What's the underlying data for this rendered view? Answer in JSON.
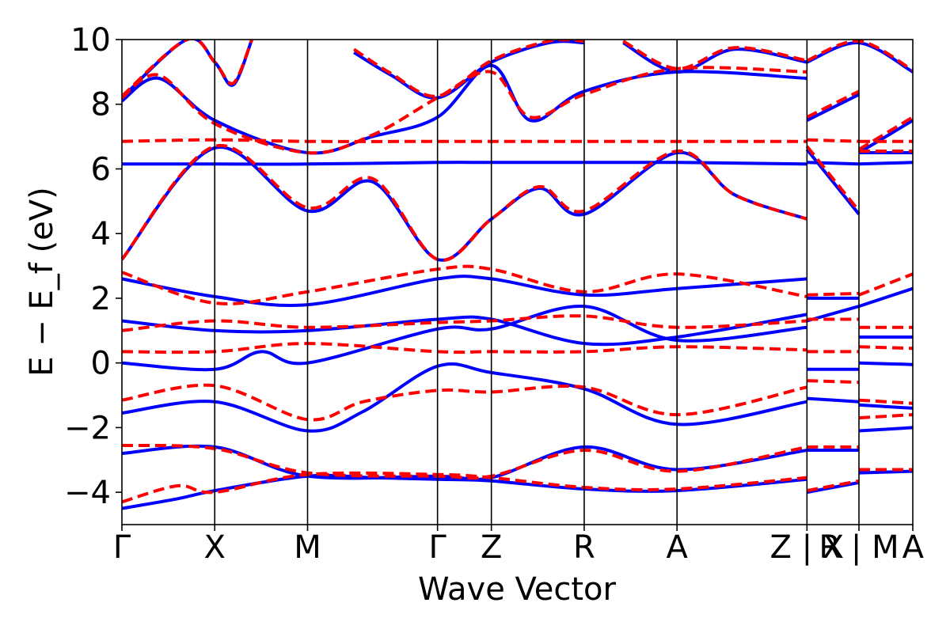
{
  "chart_data": {
    "type": "line",
    "title": "",
    "xlabel": "Wave Vector",
    "ylabel": "E − E_f (eV)",
    "ylim": [
      -5,
      10
    ],
    "grid": false,
    "legend": "none",
    "y_ticks": [
      -4,
      -2,
      0,
      2,
      4,
      6,
      8,
      10
    ],
    "y_tick_labels": [
      "−4",
      "−2",
      "0",
      "2",
      "4",
      "6",
      "8",
      "10"
    ],
    "k_points": [
      {
        "label": "Γ",
        "x": 0.0
      },
      {
        "label": "X",
        "x": 0.5
      },
      {
        "label": "M",
        "x": 1.0
      },
      {
        "label": "Γ",
        "x": 1.7
      },
      {
        "label": "Z",
        "x": 1.99
      },
      {
        "label": "R",
        "x": 2.49
      },
      {
        "label": "A",
        "x": 2.99
      },
      {
        "label": "Z | X",
        "x": 3.69
      },
      {
        "label": "R | M",
        "x": 3.97
      },
      {
        "label": "A",
        "x": 4.26
      }
    ],
    "segment_breaks": [
      3.69,
      3.97
    ],
    "series": [
      {
        "style": "solid",
        "color": "#0000ff",
        "bands": [
          [
            [
              0,
              -4.5
            ],
            [
              0.3,
              -4.2
            ],
            [
              0.5,
              -3.95
            ],
            [
              1.0,
              -3.5
            ],
            [
              1.35,
              -3.55
            ],
            [
              1.7,
              -3.6
            ],
            [
              1.99,
              -3.65
            ],
            [
              2.49,
              -3.9
            ],
            [
              2.99,
              -3.95
            ],
            [
              3.69,
              -3.6
            ],
            [
              3.69,
              -4.0
            ],
            [
              3.97,
              -3.7
            ],
            [
              3.97,
              -3.4
            ],
            [
              4.26,
              -3.35
            ]
          ],
          [
            [
              0,
              -2.8
            ],
            [
              0.5,
              -2.6
            ],
            [
              1.0,
              -3.5
            ],
            [
              1.7,
              -3.5
            ],
            [
              1.99,
              -3.55
            ],
            [
              2.49,
              -2.6
            ],
            [
              2.99,
              -3.3
            ],
            [
              3.69,
              -2.7
            ],
            [
              3.69,
              -2.7
            ],
            [
              3.97,
              -2.7
            ],
            [
              3.97,
              -2.1
            ],
            [
              4.26,
              -2.0
            ]
          ],
          [
            [
              0,
              -1.55
            ],
            [
              0.5,
              -1.2
            ],
            [
              1.0,
              -2.1
            ],
            [
              1.3,
              -1.5
            ],
            [
              1.7,
              -0.1
            ],
            [
              1.99,
              -0.3
            ],
            [
              2.49,
              -0.8
            ],
            [
              2.99,
              -1.9
            ],
            [
              3.69,
              -1.2
            ],
            [
              3.69,
              -1.1
            ],
            [
              3.97,
              -1.2
            ],
            [
              3.97,
              -1.3
            ],
            [
              4.26,
              -1.4
            ]
          ],
          [
            [
              0,
              0.0
            ],
            [
              0.5,
              -0.2
            ],
            [
              0.75,
              0.35
            ],
            [
              1.0,
              0.0
            ],
            [
              1.7,
              1.05
            ],
            [
              1.99,
              1.05
            ],
            [
              2.49,
              1.75
            ],
            [
              2.99,
              0.7
            ],
            [
              3.69,
              1.1
            ],
            [
              3.69,
              -0.2
            ],
            [
              3.97,
              -0.2
            ],
            [
              3.97,
              0.0
            ],
            [
              4.26,
              -0.05
            ]
          ],
          [
            [
              0,
              1.3
            ],
            [
              0.5,
              1.0
            ],
            [
              1.0,
              1.0
            ],
            [
              1.7,
              1.35
            ],
            [
              1.99,
              1.35
            ],
            [
              2.49,
              0.6
            ],
            [
              2.99,
              0.8
            ],
            [
              3.69,
              1.5
            ],
            [
              3.69,
              1.3
            ],
            [
              3.97,
              1.75
            ],
            [
              3.97,
              0.8
            ],
            [
              4.26,
              0.8
            ]
          ],
          [
            [
              0,
              2.6
            ],
            [
              0.5,
              2.05
            ],
            [
              1.0,
              1.8
            ],
            [
              1.7,
              2.6
            ],
            [
              1.99,
              2.6
            ],
            [
              2.49,
              2.1
            ],
            [
              2.99,
              2.3
            ],
            [
              3.69,
              2.6
            ],
            [
              3.69,
              2.0
            ],
            [
              3.97,
              2.0
            ],
            [
              3.97,
              1.75
            ],
            [
              4.26,
              2.3
            ]
          ],
          [
            [
              0,
              3.2
            ],
            [
              0.5,
              6.65
            ],
            [
              1.0,
              4.7
            ],
            [
              1.35,
              5.6
            ],
            [
              1.7,
              3.2
            ],
            [
              1.99,
              4.45
            ],
            [
              2.25,
              5.4
            ],
            [
              2.49,
              4.6
            ],
            [
              2.99,
              6.5
            ],
            [
              3.3,
              5.2
            ],
            [
              3.69,
              4.45
            ],
            [
              3.69,
              6.6
            ],
            [
              3.97,
              4.6
            ],
            [
              3.97,
              6.5
            ],
            [
              4.26,
              6.5
            ]
          ],
          [
            [
              0,
              6.15
            ],
            [
              0.5,
              6.15
            ],
            [
              1.0,
              6.15
            ],
            [
              1.7,
              6.2
            ],
            [
              1.99,
              6.2
            ],
            [
              2.49,
              6.2
            ],
            [
              2.99,
              6.2
            ],
            [
              3.69,
              6.15
            ],
            [
              3.69,
              6.2
            ],
            [
              3.97,
              6.15
            ],
            [
              3.97,
              6.15
            ],
            [
              4.26,
              6.2
            ]
          ],
          [
            [
              0,
              8.1
            ],
            [
              0.2,
              8.8
            ],
            [
              0.5,
              7.5
            ],
            [
              1.0,
              6.5
            ],
            [
              1.35,
              7.0
            ],
            [
              1.7,
              7.6
            ],
            [
              1.99,
              9.2
            ],
            [
              2.2,
              7.5
            ],
            [
              2.49,
              8.4
            ],
            [
              2.99,
              9.0
            ],
            [
              3.69,
              8.8
            ],
            [
              3.69,
              7.5
            ],
            [
              3.97,
              8.3
            ],
            [
              3.97,
              6.5
            ],
            [
              4.26,
              7.5
            ]
          ],
          [
            [
              0,
              8.2
            ],
            [
              0.35,
              10.0
            ],
            [
              0.5,
              9.3
            ],
            [
              0.6,
              8.6
            ],
            [
              0.7,
              10.0
            ]
          ],
          [
            [
              1.25,
              9.6
            ],
            [
              1.45,
              8.9
            ],
            [
              1.7,
              8.2
            ],
            [
              1.99,
              9.3
            ],
            [
              2.3,
              9.9
            ],
            [
              2.49,
              9.9
            ]
          ],
          [
            [
              2.7,
              9.9
            ],
            [
              2.99,
              9.0
            ],
            [
              3.3,
              9.7
            ],
            [
              3.69,
              9.3
            ],
            [
              3.69,
              9.3
            ],
            [
              3.97,
              9.9
            ],
            [
              4.26,
              9.0
            ]
          ]
        ]
      },
      {
        "style": "dashed",
        "color": "#ff0000",
        "bands": [
          [
            [
              0,
              -4.3
            ],
            [
              0.3,
              -3.8
            ],
            [
              0.5,
              -4.0
            ],
            [
              1.0,
              -3.45
            ],
            [
              1.7,
              -3.45
            ],
            [
              1.99,
              -3.55
            ],
            [
              2.49,
              -3.85
            ],
            [
              2.99,
              -3.9
            ],
            [
              3.69,
              -3.55
            ],
            [
              3.69,
              -3.95
            ],
            [
              3.97,
              -3.65
            ],
            [
              3.97,
              -3.3
            ],
            [
              4.26,
              -3.3
            ]
          ],
          [
            [
              0,
              -2.55
            ],
            [
              0.5,
              -2.65
            ],
            [
              1.0,
              -3.4
            ],
            [
              1.7,
              -3.5
            ],
            [
              1.99,
              -3.5
            ],
            [
              2.49,
              -2.7
            ],
            [
              2.99,
              -3.35
            ],
            [
              3.69,
              -2.6
            ],
            [
              3.69,
              -2.6
            ],
            [
              3.97,
              -2.6
            ],
            [
              3.97,
              -1.7
            ],
            [
              4.26,
              -1.6
            ]
          ],
          [
            [
              0,
              -1.15
            ],
            [
              0.5,
              -0.7
            ],
            [
              1.0,
              -1.75
            ],
            [
              1.3,
              -1.2
            ],
            [
              1.7,
              -0.85
            ],
            [
              1.99,
              -0.9
            ],
            [
              2.49,
              -0.75
            ],
            [
              2.99,
              -1.6
            ],
            [
              3.69,
              -0.75
            ],
            [
              3.69,
              -0.55
            ],
            [
              3.97,
              -0.6
            ],
            [
              3.97,
              -1.15
            ],
            [
              4.26,
              -1.25
            ]
          ],
          [
            [
              0,
              0.35
            ],
            [
              0.5,
              0.35
            ],
            [
              1.0,
              0.6
            ],
            [
              1.7,
              0.35
            ],
            [
              1.99,
              0.35
            ],
            [
              2.49,
              0.35
            ],
            [
              2.99,
              0.5
            ],
            [
              3.69,
              0.4
            ],
            [
              3.69,
              0.35
            ],
            [
              3.97,
              0.35
            ],
            [
              3.97,
              0.5
            ],
            [
              4.26,
              0.45
            ]
          ],
          [
            [
              0,
              1.0
            ],
            [
              0.5,
              1.3
            ],
            [
              1.0,
              1.1
            ],
            [
              1.7,
              1.25
            ],
            [
              1.99,
              1.3
            ],
            [
              2.49,
              1.45
            ],
            [
              2.99,
              1.1
            ],
            [
              3.69,
              1.3
            ],
            [
              3.69,
              1.35
            ],
            [
              3.97,
              1.35
            ],
            [
              3.97,
              1.1
            ],
            [
              4.26,
              1.1
            ]
          ],
          [
            [
              0,
              2.8
            ],
            [
              0.5,
              1.85
            ],
            [
              1.0,
              2.2
            ],
            [
              1.7,
              2.9
            ],
            [
              1.99,
              2.9
            ],
            [
              2.49,
              2.2
            ],
            [
              2.99,
              2.75
            ],
            [
              3.69,
              2.05
            ],
            [
              3.69,
              2.1
            ],
            [
              3.97,
              2.15
            ],
            [
              3.97,
              2.1
            ],
            [
              4.26,
              2.75
            ]
          ],
          [
            [
              0,
              3.2
            ],
            [
              0.5,
              6.7
            ],
            [
              1.0,
              4.8
            ],
            [
              1.35,
              5.7
            ],
            [
              1.7,
              3.2
            ],
            [
              1.99,
              4.45
            ],
            [
              2.25,
              5.45
            ],
            [
              2.49,
              4.7
            ],
            [
              2.99,
              6.55
            ],
            [
              3.3,
              5.2
            ],
            [
              3.69,
              4.45
            ],
            [
              3.69,
              6.7
            ],
            [
              3.97,
              4.7
            ],
            [
              3.97,
              6.55
            ],
            [
              4.26,
              6.55
            ]
          ],
          [
            [
              0,
              6.85
            ],
            [
              0.5,
              6.9
            ],
            [
              1.0,
              6.85
            ],
            [
              1.7,
              6.85
            ],
            [
              1.99,
              6.85
            ],
            [
              2.49,
              6.85
            ],
            [
              2.99,
              6.85
            ],
            [
              3.69,
              6.85
            ],
            [
              3.69,
              6.9
            ],
            [
              3.97,
              6.85
            ],
            [
              3.97,
              6.85
            ],
            [
              4.26,
              6.85
            ]
          ],
          [
            [
              0,
              8.2
            ],
            [
              0.2,
              8.9
            ],
            [
              0.5,
              7.4
            ],
            [
              1.0,
              6.5
            ],
            [
              1.35,
              7.05
            ],
            [
              1.7,
              8.2
            ],
            [
              1.99,
              9.0
            ],
            [
              2.2,
              7.6
            ],
            [
              2.49,
              8.3
            ],
            [
              2.99,
              9.1
            ],
            [
              3.69,
              9.0
            ],
            [
              3.69,
              7.6
            ],
            [
              3.97,
              8.4
            ],
            [
              3.97,
              6.6
            ],
            [
              4.26,
              7.6
            ]
          ],
          [
            [
              0,
              8.25
            ],
            [
              0.35,
              10.0
            ],
            [
              0.5,
              9.3
            ],
            [
              0.6,
              8.65
            ],
            [
              0.7,
              10.0
            ]
          ],
          [
            [
              1.25,
              9.7
            ],
            [
              1.45,
              8.95
            ],
            [
              1.7,
              8.25
            ],
            [
              1.99,
              9.35
            ],
            [
              2.3,
              9.95
            ],
            [
              2.49,
              9.95
            ]
          ],
          [
            [
              2.7,
              9.95
            ],
            [
              2.99,
              9.1
            ],
            [
              3.3,
              9.75
            ],
            [
              3.69,
              9.35
            ],
            [
              3.69,
              9.35
            ],
            [
              3.97,
              9.95
            ],
            [
              4.26,
              9.05
            ]
          ]
        ]
      }
    ]
  }
}
